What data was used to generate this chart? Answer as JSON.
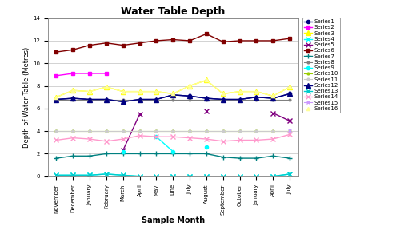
{
  "title": "Water Table Depth",
  "xlabel": "Sample Month",
  "ylabel": "Depth of Water Table (Metres)",
  "x_labels": [
    "November",
    "December",
    "January",
    "February",
    "March",
    "April",
    "May",
    "June",
    "July",
    "August",
    "September",
    "October",
    "January",
    "April",
    "July"
  ],
  "ylim": [
    0,
    14
  ],
  "yticks": [
    0,
    2,
    4,
    6,
    8,
    10,
    12,
    14
  ],
  "series": {
    "Series1": {
      "color": "#000080",
      "marker": "o",
      "markersize": 3,
      "linewidth": 1.0,
      "values": [
        6.8,
        6.9,
        6.8,
        6.8,
        6.6,
        6.8,
        6.8,
        7.2,
        7.1,
        6.9,
        6.8,
        6.8,
        7.0,
        6.9,
        7.3
      ]
    },
    "Series2": {
      "color": "#FF00FF",
      "marker": "s",
      "markersize": 3,
      "linewidth": 1.0,
      "values": [
        8.9,
        9.1,
        9.1,
        9.1,
        null,
        null,
        null,
        null,
        null,
        null,
        null,
        null,
        null,
        null,
        null
      ]
    },
    "Series3": {
      "color": "#FFFF00",
      "marker": "^",
      "markersize": 4,
      "linewidth": 1.0,
      "values": [
        7.0,
        7.6,
        7.5,
        7.9,
        7.5,
        7.5,
        7.5,
        7.3,
        8.0,
        8.5,
        7.3,
        7.5,
        7.5,
        7.1,
        7.9
      ]
    },
    "Series4": {
      "color": "#00FFFF",
      "marker": "x",
      "markersize": 4,
      "linewidth": 1.0,
      "values": [
        0.1,
        0.1,
        0.1,
        0.2,
        0.1,
        0.0,
        0.0,
        0.0,
        0.0,
        0.0,
        0.0,
        0.0,
        0.0,
        0.0,
        0.2
      ]
    },
    "Series5": {
      "color": "#800080",
      "marker": "x",
      "markersize": 4,
      "linewidth": 1.0,
      "values": [
        null,
        null,
        null,
        null,
        2.3,
        5.5,
        null,
        null,
        null,
        5.8,
        null,
        null,
        null,
        5.6,
        4.9
      ]
    },
    "Series6": {
      "color": "#800000",
      "marker": "s",
      "markersize": 3,
      "linewidth": 1.0,
      "values": [
        11.0,
        11.2,
        11.6,
        11.8,
        11.6,
        11.8,
        12.0,
        12.1,
        12.0,
        12.6,
        11.9,
        12.0,
        12.0,
        12.0,
        12.2
      ]
    },
    "Series7": {
      "color": "#008080",
      "marker": "+",
      "markersize": 4,
      "linewidth": 1.0,
      "values": [
        1.6,
        1.8,
        1.8,
        2.0,
        2.0,
        2.0,
        2.0,
        2.0,
        2.0,
        2.0,
        1.7,
        1.6,
        1.6,
        1.8,
        1.6
      ]
    },
    "Series8": {
      "color": "#808080",
      "marker": "o",
      "markersize": 2,
      "linewidth": 0.8,
      "values": [
        6.8,
        6.8,
        6.8,
        6.8,
        6.8,
        6.8,
        6.8,
        6.8,
        6.8,
        6.8,
        6.8,
        6.8,
        6.8,
        6.8,
        6.8
      ]
    },
    "Series9": {
      "color": "#00FFFF",
      "marker": "o",
      "markersize": 3,
      "linewidth": 1.0,
      "values": [
        null,
        null,
        null,
        null,
        2.2,
        null,
        3.5,
        2.2,
        null,
        2.6,
        null,
        null,
        null,
        null,
        null
      ]
    },
    "Series10": {
      "color": "#99CC00",
      "marker": "o",
      "markersize": 2,
      "linewidth": 0.8,
      "values": [
        4.0,
        4.0,
        4.0,
        4.0,
        4.0,
        4.0,
        4.0,
        4.0,
        4.0,
        4.0,
        4.0,
        4.0,
        4.0,
        4.0,
        4.0
      ]
    },
    "Series11": {
      "color": "#CCCCCC",
      "marker": "o",
      "markersize": 2,
      "linewidth": 0.8,
      "values": [
        4.0,
        4.0,
        4.0,
        4.0,
        4.0,
        4.0,
        4.0,
        4.0,
        4.0,
        4.0,
        4.0,
        4.0,
        4.0,
        4.0,
        4.0
      ]
    },
    "Series12": {
      "color": "#000080",
      "marker": "^",
      "markersize": 4,
      "linewidth": 1.0,
      "values": [
        6.8,
        6.9,
        6.8,
        6.8,
        6.6,
        6.8,
        6.8,
        7.2,
        7.1,
        6.9,
        6.8,
        6.8,
        7.0,
        6.9,
        7.3
      ]
    },
    "Series13": {
      "color": "#00CCCC",
      "marker": "x",
      "markersize": 4,
      "linewidth": 1.0,
      "values": [
        0.1,
        0.1,
        0.1,
        0.2,
        0.1,
        0.0,
        0.0,
        0.0,
        0.0,
        0.0,
        0.0,
        0.0,
        0.0,
        0.0,
        0.2
      ]
    },
    "Series14": {
      "color": "#FF99CC",
      "marker": "x",
      "markersize": 4,
      "linewidth": 1.0,
      "values": [
        3.2,
        3.4,
        3.3,
        3.1,
        3.3,
        3.6,
        3.5,
        3.5,
        3.4,
        3.3,
        3.1,
        3.2,
        3.2,
        3.3,
        3.7
      ]
    },
    "Series15": {
      "color": "#CC99FF",
      "marker": "x",
      "markersize": 3,
      "linewidth": 0.8,
      "values": [
        null,
        null,
        null,
        null,
        null,
        null,
        null,
        null,
        null,
        null,
        null,
        null,
        null,
        null,
        4.1
      ]
    },
    "Series16": {
      "color": "#FFFF99",
      "marker": "^",
      "markersize": 3,
      "linewidth": 0.8,
      "values": [
        7.0,
        7.6,
        7.5,
        7.9,
        7.5,
        7.5,
        7.5,
        7.3,
        8.0,
        8.5,
        7.3,
        7.5,
        7.5,
        7.1,
        7.9
      ]
    }
  },
  "fig_width": 5.0,
  "fig_height": 2.83,
  "dpi": 100,
  "bg_color": "#FFFFFF",
  "plot_bg_color": "#FFFFFF",
  "grid_color": "#C0C0C0",
  "title_fontsize": 9,
  "axis_label_fontsize": 7,
  "tick_fontsize": 5,
  "legend_fontsize": 5
}
